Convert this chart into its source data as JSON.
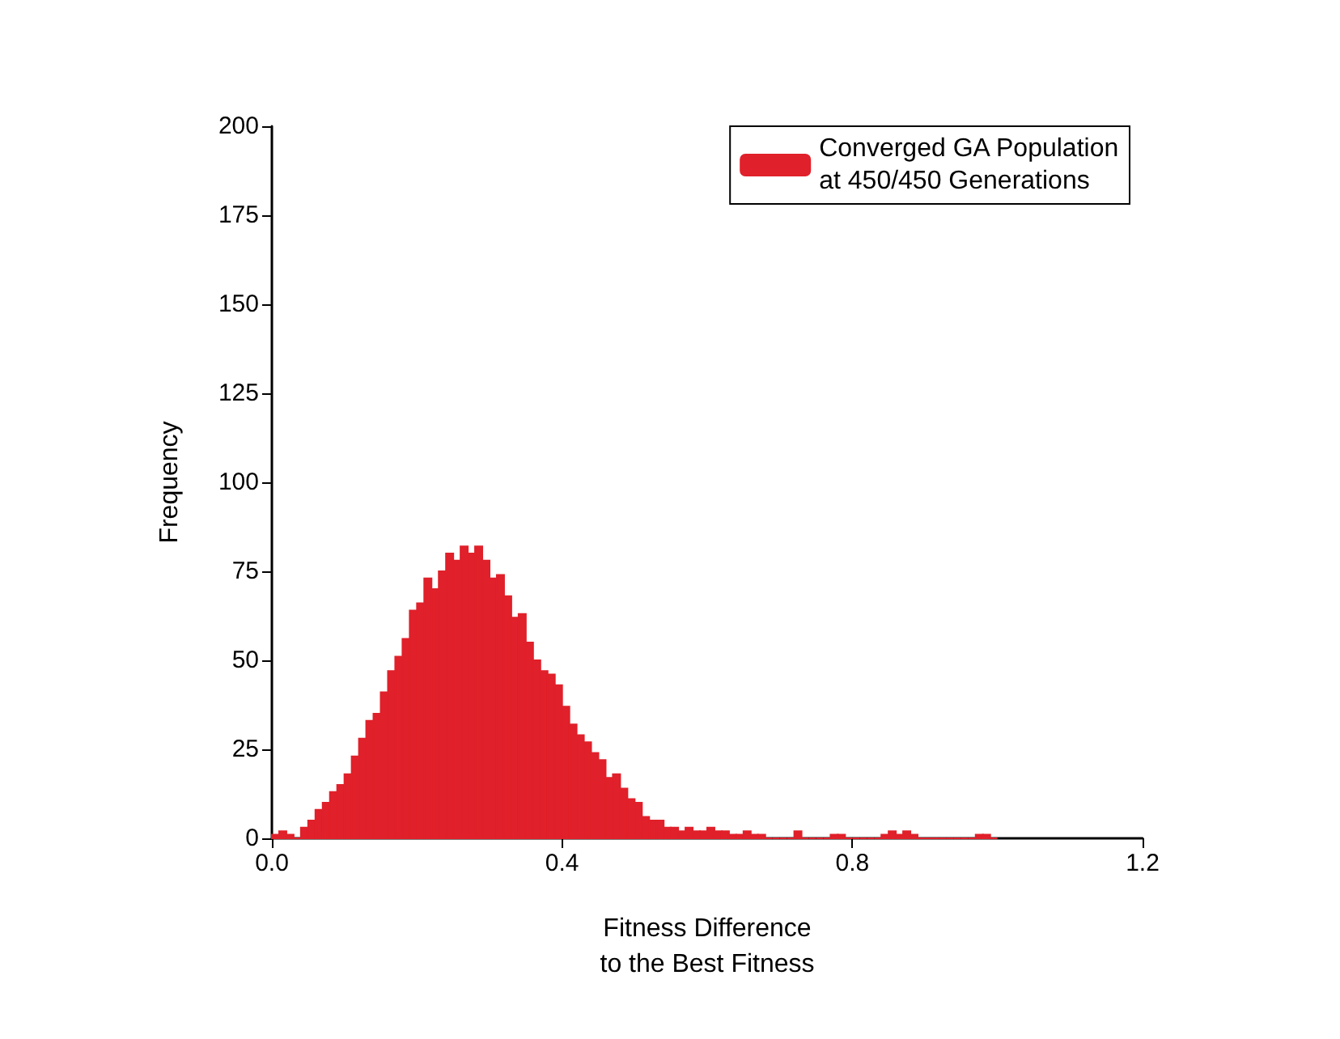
{
  "chart_data": {
    "type": "histogram",
    "xlabel": "Fitness Difference\nto the Best Fitness",
    "ylabel": "Frequency",
    "bins": [
      0,
      0.01,
      0.02,
      0.03,
      0.04,
      0.05,
      0.06,
      0.07,
      0.08,
      0.09,
      0.1,
      0.11,
      0.12,
      0.13,
      0.14,
      0.15,
      0.16,
      0.17,
      0.18,
      0.19,
      0.2,
      0.21,
      0.22,
      0.23,
      0.24,
      0.25,
      0.26,
      0.27,
      0.28,
      0.29,
      0.3,
      0.31,
      0.32,
      0.33,
      0.34,
      0.35,
      0.36,
      0.37,
      0.38,
      0.39,
      0.4,
      0.41,
      0.42,
      0.43,
      0.44,
      0.45,
      0.46,
      0.47,
      0.48,
      0.49,
      0.5,
      0.51,
      0.52,
      0.53,
      0.54,
      0.55,
      0.56,
      0.57,
      0.58,
      0.59,
      0.6,
      0.61,
      0.62,
      0.63,
      0.64,
      0.65,
      0.66,
      0.67,
      0.68,
      0.69,
      0.7,
      0.71,
      0.72,
      0.73,
      0.74,
      0.75,
      0.76,
      0.77,
      0.78,
      0.79,
      0.8,
      0.81,
      0.82,
      0.83,
      0.84,
      0.85,
      0.86,
      0.87,
      0.88,
      0.89,
      0.9,
      0.91,
      0.92,
      0.93,
      0.94,
      0.95,
      0.96,
      0.97,
      0.98,
      0.99,
      1
    ],
    "series": [
      {
        "name": "Converged GA Population\nat 450/450 Generations",
        "color": "#e0202a",
        "values": [
          1,
          2,
          1,
          0,
          3,
          5,
          8,
          10,
          13,
          15,
          18,
          23,
          28,
          33,
          35,
          41,
          47,
          51,
          56,
          64,
          66,
          73,
          70,
          75,
          80,
          78,
          82,
          80,
          82,
          78,
          73,
          74,
          68,
          62,
          63,
          55,
          50,
          47,
          46,
          43,
          37,
          32,
          29,
          27,
          24,
          22,
          17,
          18,
          14,
          11,
          10,
          6,
          5,
          5,
          3,
          3,
          2,
          3,
          2,
          2,
          3,
          2,
          2,
          1,
          1,
          2,
          1,
          1,
          0,
          0,
          0,
          0,
          2,
          0,
          0,
          0,
          0,
          1,
          1,
          0,
          0,
          0,
          0,
          0,
          1,
          2,
          1,
          2,
          1,
          0,
          0,
          0,
          0,
          0,
          0,
          0,
          0,
          1,
          1,
          0
        ]
      }
    ],
    "xlim": [
      0,
      1.2
    ],
    "xticks": [
      {
        "value": 0,
        "label": "0.0"
      },
      0.4,
      0.8,
      1.2
    ],
    "ylim": [
      0,
      200
    ],
    "yticks": [
      0,
      25,
      50,
      75,
      100,
      125,
      150,
      175,
      200
    ],
    "legend": "top right"
  }
}
